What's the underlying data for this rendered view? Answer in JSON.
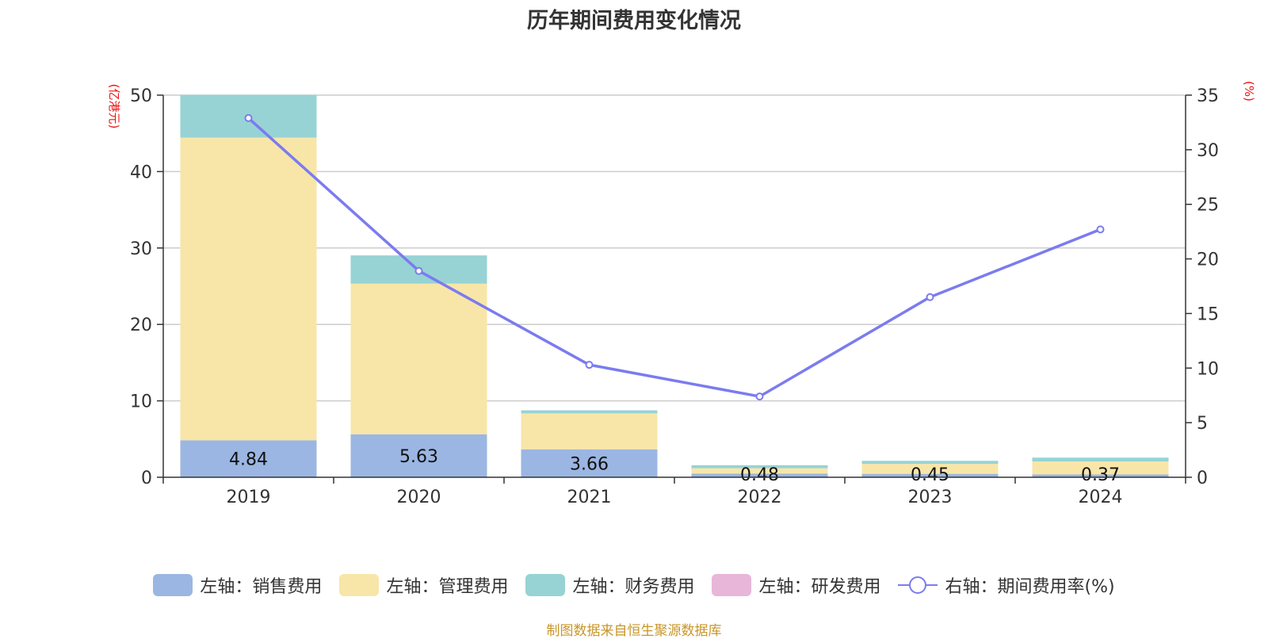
{
  "chart_data": {
    "type": "bar",
    "title": "历年期间费用变化情况",
    "categories": [
      "2019",
      "2020",
      "2021",
      "2022",
      "2023",
      "2024"
    ],
    "left_axis": {
      "unit_label": "(亿港元)",
      "ylim": [
        0,
        50
      ],
      "ticks": [
        0,
        10,
        20,
        30,
        40,
        50
      ]
    },
    "right_axis": {
      "unit_label": "(%)",
      "ylim": [
        0,
        35
      ],
      "ticks": [
        0,
        5,
        10,
        15,
        20,
        25,
        30,
        35
      ]
    },
    "grid": true,
    "legend_position": "bottom",
    "series": [
      {
        "name": "左轴：销售费用",
        "kind": "bar",
        "axis": "left",
        "color": "#9bb6e2",
        "values": [
          4.84,
          5.63,
          3.66,
          0.48,
          0.45,
          0.37
        ],
        "data_labels": [
          "4.84",
          "5.63",
          "3.66",
          "0.48",
          "0.45",
          "0.37"
        ]
      },
      {
        "name": "左轴：管理费用",
        "kind": "bar",
        "axis": "left",
        "color": "#f8e6a8",
        "values": [
          39.6,
          19.7,
          4.7,
          0.7,
          1.3,
          1.7
        ]
      },
      {
        "name": "左轴：财务费用",
        "kind": "bar",
        "axis": "left",
        "color": "#97d3d4",
        "values": [
          5.6,
          3.7,
          0.4,
          0.4,
          0.4,
          0.5
        ]
      },
      {
        "name": "左轴：研发费用",
        "kind": "bar",
        "axis": "left",
        "color": "#e8b6d8",
        "values": [
          0,
          0,
          0,
          0,
          0,
          0
        ]
      },
      {
        "name": "右轴：期间费用率(%)",
        "kind": "line",
        "axis": "right",
        "color": "#7b7bf0",
        "values": [
          32.9,
          18.9,
          10.3,
          7.4,
          16.5,
          22.7
        ]
      }
    ]
  },
  "source_note": "制图数据来自恒生聚源数据库"
}
